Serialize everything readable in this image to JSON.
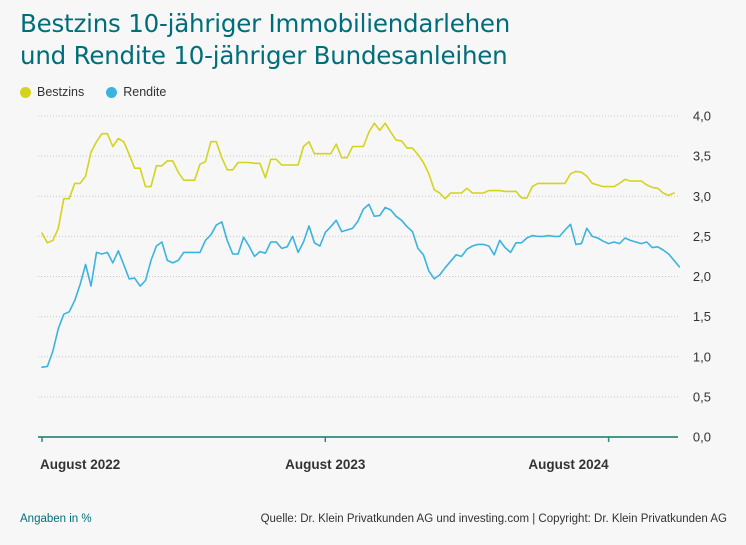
{
  "title_lines": [
    "Bestzins 10-jähriger Immobiliendarlehen",
    "und Rendite 10-jähriger Bundesanleihen"
  ],
  "footer": {
    "unit_note": "Angaben in %",
    "source": "Quelle: Dr. Klein Privatkunden AG und investing.com | Copyright: Dr. Klein Privatkunden AG"
  },
  "colors": {
    "title": "#006e7a",
    "bestzins": "#d4d41e",
    "rendite": "#3ab4de",
    "axis": "#2e8a7a",
    "grid": "#c8c8c8"
  },
  "chart_data": {
    "type": "line",
    "title": "Bestzins 10-jähriger Immobiliendarlehen und Rendite 10-jähriger Bundesanleihen",
    "ylim": [
      0,
      4
    ],
    "yticks": [
      "0,0",
      "0,5",
      "1,0",
      "1,5",
      "2,0",
      "2,5",
      "3,0",
      "3,5",
      "4,0"
    ],
    "xtick_labels": [
      {
        "label": "August 2022",
        "index": 0
      },
      {
        "label": "August 2023",
        "index": 52
      },
      {
        "label": "August 2024",
        "index": 104
      }
    ],
    "grid": "horizontal-dotted",
    "legend_position": "top-left",
    "x_interval": "weekly",
    "series": [
      {
        "name": "Bestzins",
        "color": "#d4d41e",
        "values": [
          2.54,
          2.42,
          2.45,
          2.6,
          2.97,
          2.97,
          3.16,
          3.16,
          3.25,
          3.55,
          3.68,
          3.78,
          3.78,
          3.62,
          3.72,
          3.68,
          3.52,
          3.35,
          3.35,
          3.12,
          3.12,
          3.38,
          3.38,
          3.44,
          3.44,
          3.3,
          3.2,
          3.2,
          3.2,
          3.4,
          3.43,
          3.68,
          3.68,
          3.48,
          3.33,
          3.33,
          3.42,
          3.42,
          3.42,
          3.41,
          3.41,
          3.23,
          3.46,
          3.46,
          3.39,
          3.39,
          3.39,
          3.39,
          3.62,
          3.68,
          3.53,
          3.53,
          3.53,
          3.53,
          3.65,
          3.48,
          3.48,
          3.62,
          3.62,
          3.62,
          3.8,
          3.91,
          3.82,
          3.91,
          3.8,
          3.7,
          3.69,
          3.6,
          3.6,
          3.52,
          3.42,
          3.28,
          3.08,
          3.04,
          2.97,
          3.04,
          3.04,
          3.04,
          3.1,
          3.04,
          3.04,
          3.04,
          3.07,
          3.07,
          3.07,
          3.06,
          3.06,
          3.06,
          2.98,
          2.98,
          3.12,
          3.16,
          3.16,
          3.16,
          3.16,
          3.16,
          3.16,
          3.28,
          3.31,
          3.3,
          3.25,
          3.16,
          3.14,
          3.12,
          3.12,
          3.12,
          3.16,
          3.21,
          3.19,
          3.19,
          3.19,
          3.14,
          3.11,
          3.1,
          3.04,
          3.01,
          3.04
        ]
      },
      {
        "name": "Rendite",
        "color": "#3ab4de",
        "values": [
          0.87,
          0.88,
          1.07,
          1.35,
          1.53,
          1.56,
          1.7,
          1.9,
          2.15,
          1.88,
          2.3,
          2.28,
          2.3,
          2.17,
          2.32,
          2.15,
          1.97,
          1.98,
          1.88,
          1.95,
          2.2,
          2.38,
          2.43,
          2.2,
          2.17,
          2.2,
          2.3,
          2.3,
          2.3,
          2.3,
          2.45,
          2.52,
          2.64,
          2.68,
          2.45,
          2.28,
          2.28,
          2.49,
          2.38,
          2.25,
          2.31,
          2.29,
          2.43,
          2.43,
          2.35,
          2.37,
          2.5,
          2.3,
          2.43,
          2.63,
          2.42,
          2.38,
          2.55,
          2.62,
          2.7,
          2.56,
          2.58,
          2.6,
          2.69,
          2.84,
          2.9,
          2.75,
          2.76,
          2.86,
          2.83,
          2.75,
          2.7,
          2.62,
          2.56,
          2.35,
          2.27,
          2.07,
          1.97,
          2.02,
          2.11,
          2.19,
          2.27,
          2.25,
          2.34,
          2.38,
          2.4,
          2.4,
          2.38,
          2.27,
          2.45,
          2.36,
          2.3,
          2.42,
          2.42,
          2.48,
          2.51,
          2.5,
          2.5,
          2.51,
          2.5,
          2.5,
          2.58,
          2.65,
          2.4,
          2.41,
          2.6,
          2.5,
          2.48,
          2.44,
          2.41,
          2.43,
          2.41,
          2.48,
          2.45,
          2.43,
          2.41,
          2.43,
          2.36,
          2.37,
          2.33,
          2.28,
          2.2,
          2.12
        ]
      }
    ]
  }
}
